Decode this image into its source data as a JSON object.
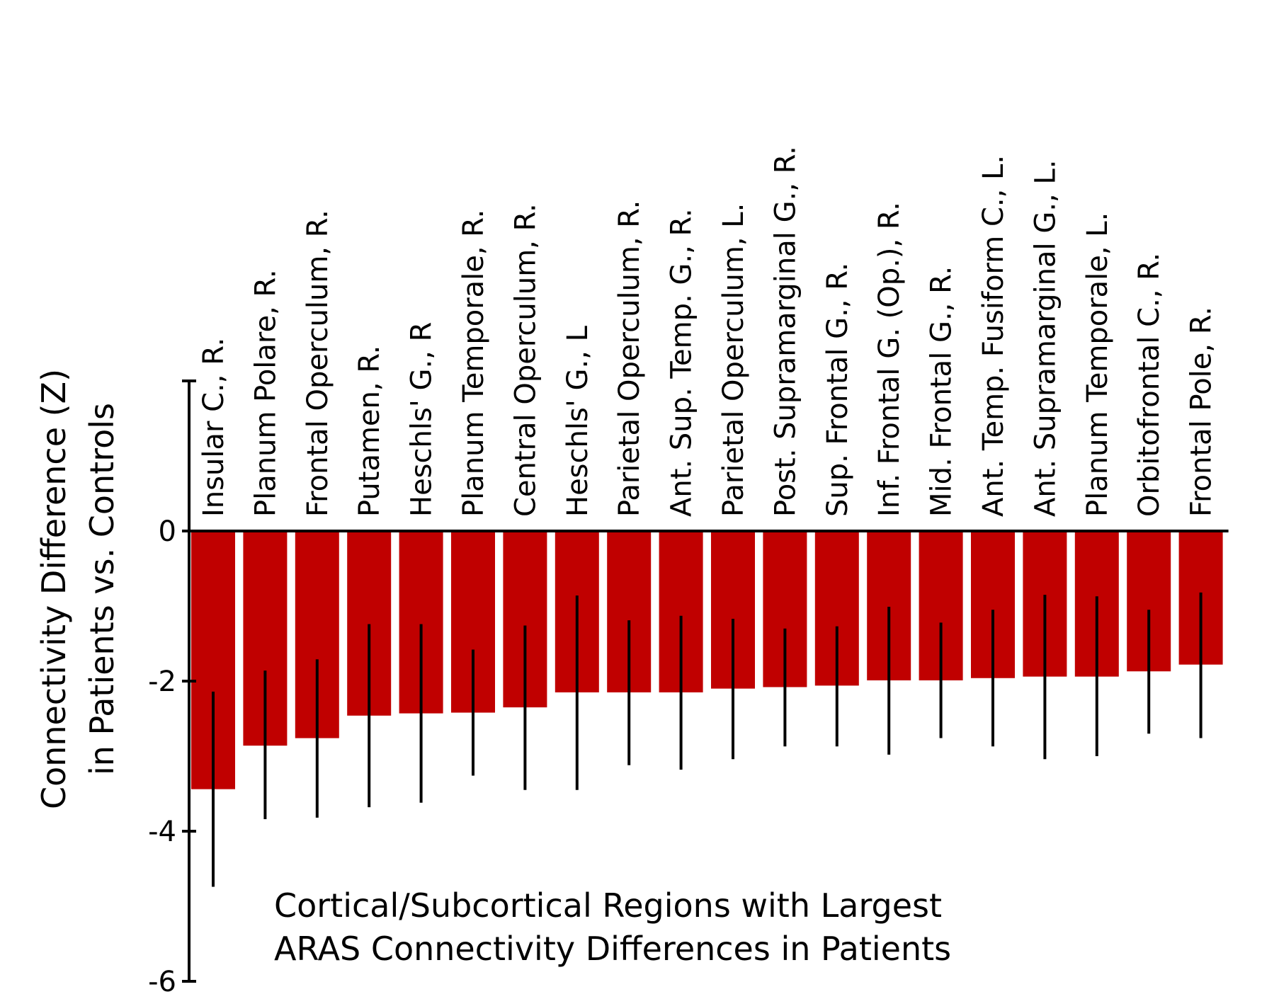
{
  "chart_data": {
    "type": "bar",
    "title": "",
    "xlabel": "",
    "ylabel_lines": [
      "Connectivity Difference (Z)",
      "in Patients vs. Controls"
    ],
    "annotation_lines": [
      "Cortical/Subcortical Regions with Largest",
      "ARAS Connectivity Differences in Patients"
    ],
    "ylim": [
      -6,
      2
    ],
    "yticks": [
      0,
      -2,
      -4,
      -6
    ],
    "ytick_labels": [
      "0",
      "-2",
      "-4",
      "-6"
    ],
    "categories": [
      "Insular C., R.",
      "Planum Polare, R.",
      "Frontal Operculum, R.",
      "Putamen, R.",
      "Heschls' G., R",
      "Planum Temporale, R.",
      "Central Operculum, R.",
      "Heschls' G., L",
      "Parietal Operculum, R.",
      "Ant. Sup. Temp. G., R.",
      "Parietal Operculum, L.",
      "Post. Supramarginal G., R.",
      "Sup. Frontal G., R.",
      "Inf. Frontal G. (Op.), R.",
      "Mid.  Frontal G., R.",
      "Ant. Temp. Fusiform C., L.",
      "Ant. Supramarginal G., L.",
      "Planum Temporale, L.",
      "Orbitofrontal C., R.",
      "Frontal Pole, R."
    ],
    "values": [
      -3.44,
      -2.86,
      -2.76,
      -2.46,
      -2.43,
      -2.42,
      -2.35,
      -2.15,
      -2.15,
      -2.15,
      -2.1,
      -2.08,
      -2.06,
      -1.99,
      -1.99,
      -1.96,
      -1.94,
      -1.94,
      -1.87,
      -1.78
    ],
    "error_low": [
      -4.74,
      -3.84,
      -3.82,
      -3.68,
      -3.62,
      -3.26,
      -3.45,
      -3.45,
      -3.12,
      -3.18,
      -3.04,
      -2.87,
      -2.87,
      -2.98,
      -2.76,
      -2.87,
      -3.04,
      -3.0,
      -2.7,
      -2.76
    ],
    "error_high": [
      -2.14,
      -1.86,
      -1.71,
      -1.24,
      -1.24,
      -1.58,
      -1.26,
      -0.86,
      -1.19,
      -1.13,
      -1.17,
      -1.3,
      -1.27,
      -1.01,
      -1.22,
      -1.05,
      -0.85,
      -0.87,
      -1.05,
      -0.82
    ],
    "colors": {
      "bar": "#c00000",
      "error_bar": "#000000",
      "axis": "#000000"
    }
  }
}
